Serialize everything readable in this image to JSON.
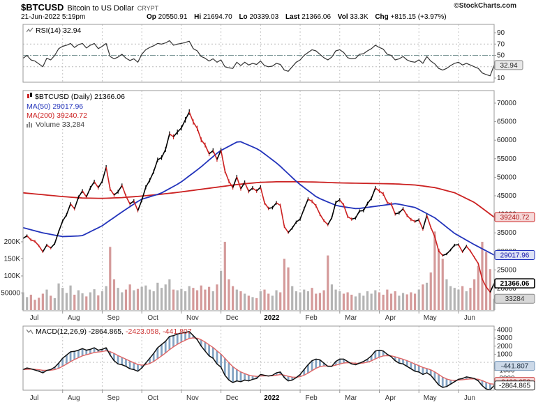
{
  "header": {
    "symbol": "$BTCUSD",
    "name": "Bitcoin to US Dollar",
    "exchange": "CRYPT",
    "copyright": "©StockCharts.com",
    "datetime": "21-Jun-2022 5:19pm",
    "quote": {
      "op_label": "Op",
      "op": "20550.91",
      "hi_label": "Hi",
      "hi": "21694.70",
      "lo_label": "Lo",
      "lo": "20339.03",
      "last_label": "Last",
      "last": "21366.06",
      "vol_label": "Vol",
      "vol": "33.3K",
      "chg_label": "Chg",
      "chg": "+815.15 (+3.97%)"
    }
  },
  "rsi_panel": {
    "legend": "RSI(14) 32.94",
    "badge": "32.94",
    "ticks": [
      90,
      70,
      50,
      30,
      10
    ]
  },
  "main_panel": {
    "legend_symbol": "$BTCUSD (Daily) 21366.06",
    "legend_ma50": "MA(50) 29017.96",
    "legend_ma200": "MA(200) 39240.72",
    "legend_volume": "Volume 33,284",
    "price_ticks": [
      70000,
      65000,
      60000,
      55000,
      50000,
      45000,
      40000,
      35000,
      30000,
      25000,
      20000
    ],
    "volume_ticks": [
      {
        "label": "200K",
        "v": 200000
      },
      {
        "label": "150K",
        "v": 150000
      },
      {
        "label": "100K",
        "v": 100000
      },
      {
        "label": "50000",
        "v": 50000
      }
    ],
    "badges": {
      "ma200": "39240.72",
      "ma50": "29017.96",
      "last": "21366.06",
      "volume": "33284"
    }
  },
  "macd_panel": {
    "legend_name": "MACD(12,26,9) -2864.865,",
    "legend_signal": "-2423.058,",
    "legend_hist": "-441.807",
    "ticks": [
      4000,
      3000,
      2000,
      1000,
      -1000,
      -2000,
      -3000
    ],
    "badges": {
      "hist": "-441.807",
      "signal": "-2423.058",
      "macd": "-2864.865"
    }
  },
  "x_axis": {
    "months": [
      "Jul",
      "Aug",
      "Sep",
      "Oct",
      "Nov",
      "Dec",
      "2022",
      "Feb",
      "Mar",
      "Apr",
      "May",
      "Jun"
    ],
    "bold_index": 6
  },
  "colors": {
    "up": "#000000",
    "down": "#cc2222",
    "ma50": "#2233bb",
    "ma200": "#cc2222",
    "volume_up": "#b4b4b4",
    "volume_down": "#d49a9a",
    "rsi": "#333333",
    "macd_line": "#111111",
    "macd_signal": "#e06666",
    "macd_hist": "#7799bb",
    "grid": "#c4c4c4",
    "border": "#999999",
    "tick_text": "#222222"
  },
  "chart_data": {
    "type": "candlestick",
    "title": "$BTCUSD Bitcoin to US Dollar (Daily)",
    "x_months": [
      "Jul",
      "Aug",
      "Sep",
      "Oct",
      "Nov",
      "Dec",
      "2022",
      "Feb",
      "Mar",
      "Apr",
      "May",
      "Jun"
    ],
    "points_per_month": 10,
    "price": {
      "type": "candlestick",
      "ylim": [
        20000,
        70000
      ],
      "last": 21366.06,
      "close": [
        33500,
        34200,
        33100,
        32700,
        31500,
        29900,
        31700,
        30900,
        32100,
        35300,
        38200,
        39900,
        42800,
        41500,
        44600,
        46300,
        44700,
        47100,
        48800,
        47200,
        48900,
        52700,
        46800,
        45200,
        46100,
        47800,
        44900,
        42800,
        43600,
        41000,
        43800,
        47300,
        49200,
        51500,
        54700,
        55300,
        57500,
        61700,
        60900,
        62200,
        63300,
        65500,
        67600,
        64900,
        63200,
        60100,
        58700,
        56300,
        57200,
        54800,
        57300,
        51700,
        48900,
        47200,
        50100,
        46900,
        48600,
        46200,
        47100,
        46300,
        47300,
        43100,
        41600,
        41800,
        43100,
        42400,
        36700,
        35100,
        36300,
        37900,
        38700,
        41500,
        44100,
        43500,
        42300,
        40000,
        38300,
        37200,
        39100,
        43200,
        43900,
        42500,
        39400,
        38700,
        39000,
        40900,
        41000,
        42900,
        44300,
        47100,
        46300,
        45500,
        43200,
        42800,
        40100,
        40400,
        41500,
        39700,
        38600,
        38100,
        38500,
        36000,
        39700,
        36500,
        34000,
        30100,
        28900,
        29300,
        30400,
        31700,
        31800,
        29900,
        31400,
        30100,
        28400,
        26700,
        22500,
        20400,
        19000,
        21366.06
      ]
    },
    "ma50": {
      "type": "line",
      "end": 29017.96,
      "anchors": [
        36400,
        35000,
        34000,
        34200,
        36800,
        40500,
        44000,
        45600,
        48500,
        52500,
        57000,
        59800,
        57500,
        53500,
        48500,
        44500,
        42300,
        41500,
        42200,
        42900,
        41800,
        39000,
        34800,
        31800,
        29017.96
      ]
    },
    "ma200": {
      "type": "line",
      "end": 39240.72,
      "anchors": [
        45800,
        45300,
        44800,
        44400,
        44300,
        44500,
        44900,
        45400,
        46000,
        46700,
        47400,
        48100,
        48600,
        48800,
        48800,
        48700,
        48500,
        48400,
        48300,
        48200,
        47900,
        47200,
        45800,
        43200,
        39240.72
      ]
    },
    "volume": {
      "type": "bar",
      "last": 33284,
      "values": [
        52000,
        38000,
        45000,
        30000,
        36000,
        48000,
        60000,
        42000,
        35000,
        78000,
        65000,
        50000,
        72000,
        45000,
        58000,
        49000,
        40000,
        52000,
        61000,
        43000,
        55000,
        70000,
        185000,
        90000,
        65000,
        52000,
        60000,
        75000,
        58000,
        62000,
        68000,
        72000,
        60000,
        55000,
        80000,
        65000,
        75000,
        90000,
        60000,
        58000,
        62000,
        55000,
        70000,
        65000,
        58000,
        72000,
        60000,
        68000,
        55000,
        75000,
        115000,
        200000,
        90000,
        70000,
        60000,
        55000,
        48000,
        42000,
        38000,
        35000,
        55000,
        60000,
        48000,
        42000,
        58000,
        52000,
        150000,
        125000,
        70000,
        55000,
        52000,
        60000,
        55000,
        65000,
        48000,
        50000,
        58000,
        160000,
        75000,
        60000,
        55000,
        48000,
        52000,
        45000,
        40000,
        50000,
        42000,
        55000,
        48000,
        58000,
        52000,
        45000,
        60000,
        48000,
        55000,
        42000,
        50000,
        46000,
        52000,
        48000,
        60000,
        75000,
        80000,
        110000,
        230000,
        180000,
        150000,
        90000,
        70000,
        65000,
        60000,
        70000,
        55000,
        65000,
        90000,
        130000,
        200000,
        170000,
        120000,
        33284
      ]
    },
    "rsi": {
      "type": "line",
      "ylim": [
        0,
        100
      ],
      "last": 32.94,
      "guides": [
        70,
        50,
        30
      ],
      "values": [
        45,
        50,
        42,
        40,
        35,
        30,
        45,
        42,
        50,
        62,
        66,
        68,
        71,
        64,
        69,
        71,
        63,
        68,
        71,
        62,
        66,
        71,
        48,
        44,
        47,
        52,
        45,
        41,
        44,
        38,
        52,
        60,
        64,
        67,
        71,
        70,
        72,
        76,
        68,
        70,
        71,
        73,
        75,
        62,
        58,
        48,
        45,
        40,
        44,
        38,
        42,
        30,
        28,
        27,
        38,
        32,
        38,
        33,
        36,
        34,
        40,
        32,
        30,
        31,
        36,
        34,
        24,
        22,
        30,
        38,
        42,
        50,
        55,
        60,
        58,
        52,
        46,
        42,
        47,
        58,
        60,
        55,
        46,
        44,
        45,
        52,
        53,
        58,
        62,
        68,
        64,
        61,
        52,
        50,
        42,
        44,
        48,
        42,
        39,
        38,
        42,
        36,
        48,
        40,
        35,
        27,
        24,
        27,
        32,
        36,
        38,
        33,
        36,
        33,
        30,
        27,
        19,
        16,
        14,
        32.94
      ]
    },
    "macd": {
      "type": "line+histogram",
      "ylim": [
        -3500,
        4500
      ],
      "macd_last": -2864.865,
      "signal_last": -2423.058,
      "hist_last": -441.807,
      "values": [
        -900,
        -700,
        -800,
        -950,
        -1100,
        -1300,
        -1000,
        -900,
        -600,
        -100,
        500,
        900,
        1300,
        1350,
        1500,
        1700,
        1500,
        1600,
        1800,
        1500,
        1600,
        1800,
        900,
        200,
        -200,
        -300,
        -500,
        -800,
        -900,
        -1100,
        -700,
        -100,
        500,
        1100,
        1800,
        2200,
        2600,
        3200,
        3300,
        3500,
        3600,
        3700,
        3800,
        3300,
        2800,
        2000,
        1400,
        800,
        500,
        -200,
        -600,
        -1600,
        -2200,
        -2500,
        -2300,
        -2400,
        -2200,
        -2300,
        -2100,
        -2000,
        -1500,
        -1600,
        -1700,
        -1600,
        -1300,
        -1200,
        -1900,
        -2300,
        -2200,
        -1900,
        -1500,
        -900,
        -300,
        200,
        400,
        300,
        -100,
        -500,
        -500,
        100,
        400,
        400,
        100,
        -200,
        -300,
        -100,
        100,
        400,
        800,
        1400,
        1500,
        1400,
        1000,
        700,
        200,
        -100,
        -200,
        -500,
        -800,
        -1100,
        -1200,
        -1500,
        -1300,
        -1600,
        -2200,
        -2800,
        -3100,
        -3000,
        -2700,
        -2400,
        -2100,
        -2000,
        -1800,
        -1900,
        -2000,
        -2300,
        -2900,
        -3300,
        -3400,
        -2864.865
      ]
    }
  }
}
